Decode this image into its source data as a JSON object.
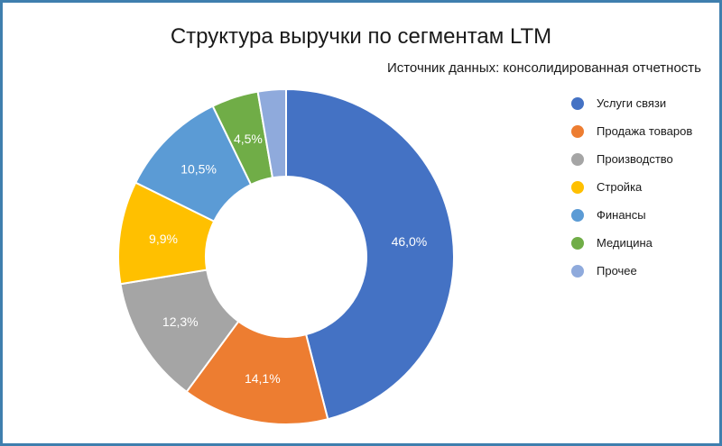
{
  "chart_data": {
    "type": "pie",
    "donut": true,
    "title": "Структура выручки по сегментам LTM",
    "subtitle": "Источник данных: консолидированная отчетность",
    "legend_position": "right",
    "unit": "%",
    "categories": [
      "Услуги связи",
      "Продажа товаров",
      "Производство",
      "Стройка",
      "Финансы",
      "Медицина",
      "Прочее"
    ],
    "values": [
      46.0,
      14.1,
      12.3,
      9.9,
      10.5,
      4.5,
      2.7
    ],
    "labels": [
      "46,0%",
      "14,1%",
      "12,3%",
      "9,9%",
      "10,5%",
      "4,5%",
      ""
    ],
    "colors": [
      "#4472c4",
      "#ed7d31",
      "#a5a5a5",
      "#ffc000",
      "#5b9bd5",
      "#70ad47",
      "#8faadc"
    ]
  }
}
